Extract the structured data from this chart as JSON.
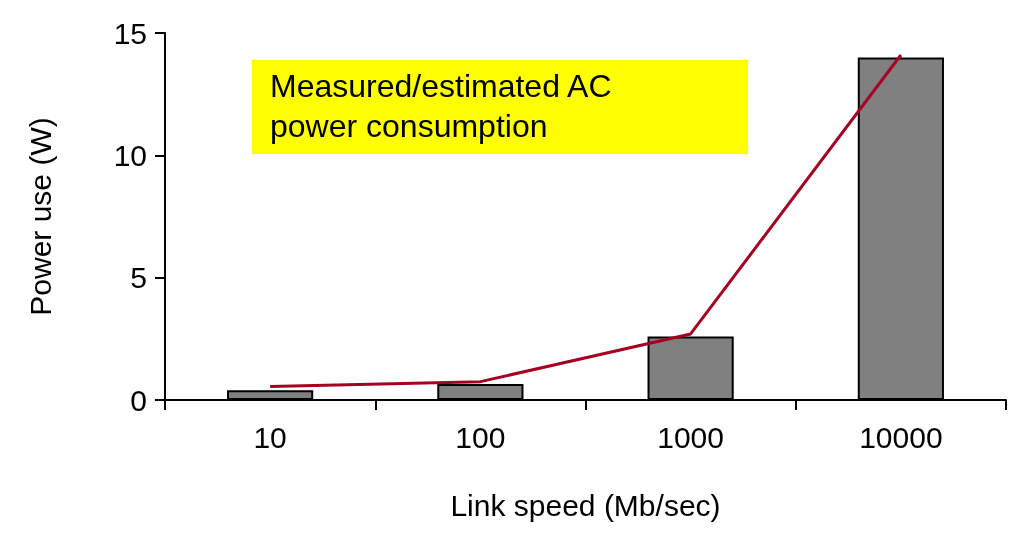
{
  "chart_data": {
    "type": "bar",
    "xlabel": "Link speed (Mb/sec)",
    "ylabel": "Power use (W)",
    "categories": [
      "10",
      "100",
      "1000",
      "10000"
    ],
    "series": [
      {
        "color": "#808080",
        "values": [
          0.4,
          0.65,
          2.6,
          14.0
        ]
      },
      {
        "type": "line",
        "color": "#a50021",
        "values": [
          0.55,
          0.75,
          2.7,
          14.1
        ]
      }
    ],
    "ylim": [
      0,
      15
    ],
    "yticks": [
      0,
      5,
      10,
      15
    ],
    "grid": false,
    "marker": "none",
    "line_style": "solid",
    "annotations": [
      "Measured/estimated AC power consumption"
    ]
  }
}
